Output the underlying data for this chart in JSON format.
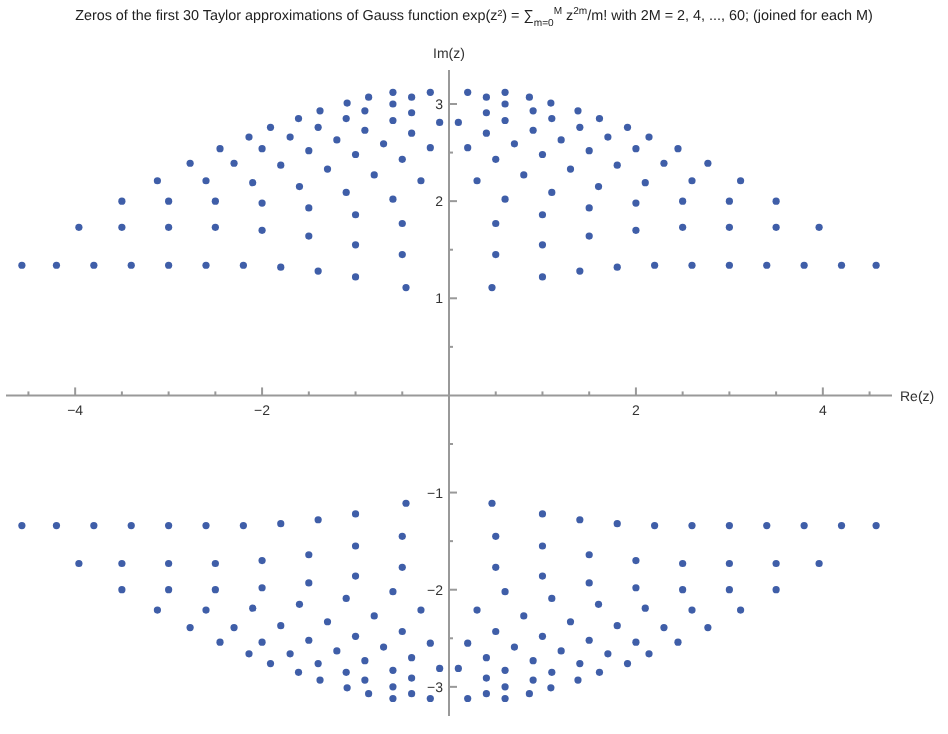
{
  "chart_data": {
    "type": "scatter",
    "title": "Zeros of the first 30 Taylor approximations of Gauss function  exp(z²) = ∑$_{m=0}$$^{M}$ z$^{2m}$/m!  with 2M = 2, 4, ..., 60; (joined for each  M)",
    "xlabel": "Re(z)",
    "ylabel": "Im(z)",
    "marker": "circle",
    "grid": false,
    "xlim": [
      -4.74,
      4.74
    ],
    "ylim": [
      -3.3,
      3.35
    ],
    "xticks": [
      {
        "value": -4.5,
        "label": null
      },
      -4,
      {
        "value": -3.5,
        "label": null
      },
      {
        "value": -3,
        "label": null
      },
      {
        "value": -2.5,
        "label": null
      },
      -2,
      {
        "value": -1.5,
        "label": null
      },
      {
        "value": -1,
        "label": null
      },
      {
        "value": -0.5,
        "label": null
      },
      {
        "value": 0.5,
        "label": null
      },
      {
        "value": 1,
        "label": null
      },
      {
        "value": 1.5,
        "label": null
      },
      2,
      {
        "value": 2.5,
        "label": null
      },
      {
        "value": 3,
        "label": null
      },
      {
        "value": 3.5,
        "label": null
      },
      4,
      {
        "value": 4.5,
        "label": null
      }
    ],
    "yticks": [
      -3,
      {
        "value": -2.5,
        "label": null
      },
      -2,
      {
        "value": -1.5,
        "label": null
      },
      -1,
      {
        "value": -0.5,
        "label": null
      },
      {
        "value": 0.5,
        "label": null
      },
      1,
      {
        "value": 1.5,
        "label": null
      },
      2,
      {
        "value": 2.5,
        "label": null
      },
      3
    ],
    "series": [
      {
        "color": "#3f5ea8",
        "x": [
          -4.57,
          -4.2,
          -3.8,
          -3.4,
          -3.0,
          -2.6,
          -2.2,
          -1.8,
          -1.4,
          -1.0,
          -0.46,
          0.46,
          1.0,
          1.4,
          1.8,
          2.2,
          2.6,
          3.0,
          3.4,
          3.8,
          4.2,
          4.57,
          -3.96,
          -3.5,
          -3.0,
          -2.5,
          -2.0,
          -1.5,
          -1.0,
          -0.5,
          0.5,
          1.0,
          1.5,
          2.0,
          2.5,
          3.0,
          3.5,
          3.96,
          -3.5,
          -3.0,
          -2.5,
          -2.0,
          -1.5,
          -1.0,
          -0.5,
          0.5,
          1.0,
          1.5,
          2.0,
          2.5,
          3.0,
          3.5,
          -3.12,
          -2.6,
          -2.1,
          -1.6,
          -1.1,
          -0.6,
          0.6,
          1.1,
          1.6,
          2.1,
          2.6,
          3.12,
          -2.77,
          -2.3,
          -1.8,
          -1.3,
          -0.8,
          -0.3,
          0.3,
          0.8,
          1.3,
          1.8,
          2.3,
          2.77,
          -2.45,
          -2.0,
          -1.5,
          -1.0,
          -0.5,
          0.5,
          1.0,
          1.5,
          2.0,
          2.45,
          -2.14,
          -1.7,
          -1.2,
          -0.7,
          -0.2,
          0.2,
          0.7,
          1.2,
          1.7,
          2.14,
          -1.91,
          -1.4,
          -0.9,
          -0.4,
          0.4,
          0.9,
          1.4,
          1.91,
          -1.61,
          -1.1,
          -0.6,
          -0.1,
          0.1,
          0.6,
          1.1,
          1.61,
          -1.38,
          -0.9,
          -0.4,
          0.4,
          0.9,
          1.38,
          -1.09,
          -0.6,
          0.6,
          1.09,
          -0.86,
          -0.4,
          0.4,
          0.86,
          -0.6,
          -0.2,
          0.2,
          0.6
        ],
        "values": [
          1.34,
          1.34,
          1.34,
          1.34,
          1.34,
          1.34,
          1.34,
          1.32,
          1.28,
          1.22,
          1.11,
          1.11,
          1.22,
          1.28,
          1.32,
          1.34,
          1.34,
          1.34,
          1.34,
          1.34,
          1.34,
          1.34,
          1.73,
          1.73,
          1.73,
          1.73,
          1.7,
          1.64,
          1.55,
          1.45,
          1.45,
          1.55,
          1.64,
          1.7,
          1.73,
          1.73,
          1.73,
          1.73,
          2.0,
          2.0,
          2.0,
          1.98,
          1.93,
          1.86,
          1.77,
          1.77,
          1.86,
          1.93,
          1.98,
          2.0,
          2.0,
          2.0,
          2.21,
          2.21,
          2.19,
          2.15,
          2.09,
          2.02,
          2.02,
          2.09,
          2.15,
          2.19,
          2.21,
          2.21,
          2.39,
          2.39,
          2.37,
          2.33,
          2.27,
          2.21,
          2.21,
          2.27,
          2.33,
          2.37,
          2.39,
          2.39,
          2.54,
          2.54,
          2.52,
          2.48,
          2.43,
          2.43,
          2.48,
          2.52,
          2.54,
          2.54,
          2.66,
          2.66,
          2.63,
          2.59,
          2.55,
          2.55,
          2.59,
          2.63,
          2.66,
          2.66,
          2.76,
          2.76,
          2.73,
          2.7,
          2.7,
          2.73,
          2.76,
          2.76,
          2.85,
          2.85,
          2.83,
          2.81,
          2.81,
          2.83,
          2.85,
          2.85,
          2.93,
          2.93,
          2.91,
          2.91,
          2.93,
          2.93,
          3.01,
          3.0,
          3.0,
          3.01,
          3.07,
          3.07,
          3.07,
          3.07,
          3.12,
          3.12,
          3.12,
          3.12
        ]
      },
      {
        "color": "#3f5ea8",
        "x": [
          -4.57,
          -4.2,
          -3.8,
          -3.4,
          -3.0,
          -2.6,
          -2.2,
          -1.8,
          -1.4,
          -1.0,
          -0.46,
          0.46,
          1.0,
          1.4,
          1.8,
          2.2,
          2.6,
          3.0,
          3.4,
          3.8,
          4.2,
          4.57,
          -3.96,
          -3.5,
          -3.0,
          -2.5,
          -2.0,
          -1.5,
          -1.0,
          -0.5,
          0.5,
          1.0,
          1.5,
          2.0,
          2.5,
          3.0,
          3.5,
          3.96,
          -3.5,
          -3.0,
          -2.5,
          -2.0,
          -1.5,
          -1.0,
          -0.5,
          0.5,
          1.0,
          1.5,
          2.0,
          2.5,
          3.0,
          3.5,
          -3.12,
          -2.6,
          -2.1,
          -1.6,
          -1.1,
          -0.6,
          0.6,
          1.1,
          1.6,
          2.1,
          2.6,
          3.12,
          -2.77,
          -2.3,
          -1.8,
          -1.3,
          -0.8,
          -0.3,
          0.3,
          0.8,
          1.3,
          1.8,
          2.3,
          2.77,
          -2.45,
          -2.0,
          -1.5,
          -1.0,
          -0.5,
          0.5,
          1.0,
          1.5,
          2.0,
          2.45,
          -2.14,
          -1.7,
          -1.2,
          -0.7,
          -0.2,
          0.2,
          0.7,
          1.2,
          1.7,
          2.14,
          -1.91,
          -1.4,
          -0.9,
          -0.4,
          0.4,
          0.9,
          1.4,
          1.91,
          -1.61,
          -1.1,
          -0.6,
          -0.1,
          0.1,
          0.6,
          1.1,
          1.61,
          -1.38,
          -0.9,
          -0.4,
          0.4,
          0.9,
          1.38,
          -1.09,
          -0.6,
          0.6,
          1.09,
          -0.86,
          -0.4,
          0.4,
          0.86,
          -0.6,
          -0.2,
          0.2,
          0.6
        ],
        "values": [
          -1.34,
          -1.34,
          -1.34,
          -1.34,
          -1.34,
          -1.34,
          -1.34,
          -1.32,
          -1.28,
          -1.22,
          -1.11,
          -1.11,
          -1.22,
          -1.28,
          -1.32,
          -1.34,
          -1.34,
          -1.34,
          -1.34,
          -1.34,
          -1.34,
          -1.34,
          -1.73,
          -1.73,
          -1.73,
          -1.73,
          -1.7,
          -1.64,
          -1.55,
          -1.45,
          -1.45,
          -1.55,
          -1.64,
          -1.7,
          -1.73,
          -1.73,
          -1.73,
          -1.73,
          -2.0,
          -2.0,
          -2.0,
          -1.98,
          -1.93,
          -1.86,
          -1.77,
          -1.77,
          -1.86,
          -1.93,
          -1.98,
          -2.0,
          -2.0,
          -2.0,
          -2.21,
          -2.21,
          -2.19,
          -2.15,
          -2.09,
          -2.02,
          -2.02,
          -2.09,
          -2.15,
          -2.19,
          -2.21,
          -2.21,
          -2.39,
          -2.39,
          -2.37,
          -2.33,
          -2.27,
          -2.21,
          -2.21,
          -2.27,
          -2.33,
          -2.37,
          -2.39,
          -2.39,
          -2.54,
          -2.54,
          -2.52,
          -2.48,
          -2.43,
          -2.43,
          -2.48,
          -2.52,
          -2.54,
          -2.54,
          -2.66,
          -2.66,
          -2.63,
          -2.59,
          -2.55,
          -2.55,
          -2.59,
          -2.63,
          -2.66,
          -2.66,
          -2.76,
          -2.76,
          -2.73,
          -2.7,
          -2.7,
          -2.73,
          -2.76,
          -2.76,
          -2.85,
          -2.85,
          -2.83,
          -2.81,
          -2.81,
          -2.83,
          -2.85,
          -2.85,
          -2.93,
          -2.93,
          -2.91,
          -2.91,
          -2.93,
          -2.93,
          -3.01,
          -3.0,
          -3.0,
          -3.01,
          -3.07,
          -3.07,
          -3.07,
          -3.07,
          -3.12,
          -3.12,
          -3.12,
          -3.12
        ]
      }
    ]
  }
}
